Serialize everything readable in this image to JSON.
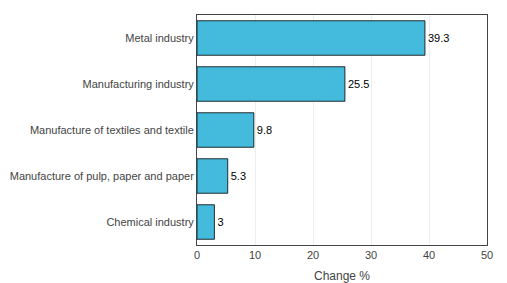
{
  "chart_data": {
    "type": "bar",
    "orientation": "horizontal",
    "categories": [
      "Chemical industry",
      "Manufacture of pulp, paper and paper",
      "Manufacture of textiles and textile",
      "Manufacturing industry",
      "Metal industry"
    ],
    "values": [
      3,
      5.3,
      9.8,
      25.5,
      39.3
    ],
    "color": "#44BBDD",
    "xlabel": "Change %",
    "xlim": [
      0,
      50
    ],
    "xticks": [
      0,
      10,
      20,
      30,
      40,
      50
    ],
    "grid": true,
    "data_labels": true
  }
}
